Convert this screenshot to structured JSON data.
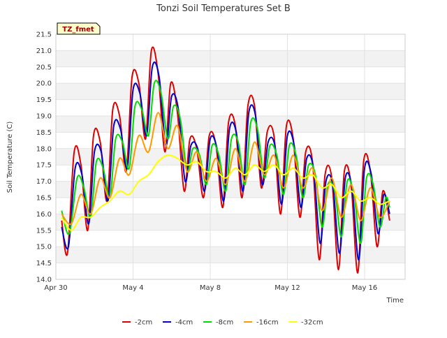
{
  "chart_data": {
    "type": "line",
    "title": "Tonzi Soil Temperatures Set B",
    "xlabel": "Time",
    "ylabel": "Soil Temperature (C)",
    "tag_label": "TZ_fmet",
    "ylim": [
      14.0,
      21.5
    ],
    "xlim": [
      0,
      18.1
    ],
    "x_unit": "days since Apr 30",
    "x_ticks": [
      {
        "label": "Apr 30",
        "value": 0
      },
      {
        "label": "May 4",
        "value": 4
      },
      {
        "label": "May 8",
        "value": 8
      },
      {
        "label": "May 12",
        "value": 12
      },
      {
        "label": "May 16",
        "value": 16
      }
    ],
    "y_ticks": [
      {
        "label": "14.0",
        "value": 14.0
      },
      {
        "label": "14.5",
        "value": 14.5
      },
      {
        "label": "15.0",
        "value": 15.0
      },
      {
        "label": "15.5",
        "value": 15.5
      },
      {
        "label": "16.0",
        "value": 16.0
      },
      {
        "label": "16.5",
        "value": 16.5
      },
      {
        "label": "17.0",
        "value": 17.0
      },
      {
        "label": "17.5",
        "value": 17.5
      },
      {
        "label": "18.0",
        "value": 18.0
      },
      {
        "label": "18.5",
        "value": 18.5
      },
      {
        "label": "19.0",
        "value": 19.0
      },
      {
        "label": "19.5",
        "value": 19.5
      },
      {
        "label": "20.0",
        "value": 20.0
      },
      {
        "label": "20.5",
        "value": 20.5
      },
      {
        "label": "21.0",
        "value": 21.0
      },
      {
        "label": "21.5",
        "value": 21.5
      }
    ],
    "grid": true,
    "legend_position": "bottom",
    "series": [
      {
        "name": "-2cm",
        "color": "#dd0000",
        "x": [
          0.3,
          0.6,
          0.95,
          1.3,
          1.65,
          1.95,
          2.3,
          2.65,
          2.95,
          3.3,
          3.65,
          3.95,
          4.3,
          4.65,
          4.95,
          5.3,
          5.65,
          5.95,
          6.3,
          6.65,
          6.95,
          7.3,
          7.65,
          7.95,
          8.3,
          8.65,
          8.95,
          9.3,
          9.65,
          9.95,
          10.3,
          10.65,
          10.95,
          11.3,
          11.65,
          11.95,
          12.3,
          12.65,
          12.95,
          13.3,
          13.65,
          13.95,
          14.3,
          14.65,
          14.95,
          15.3,
          15.65,
          15.95,
          16.3,
          16.65,
          16.95,
          17.3
        ],
        "y": [
          15.8,
          14.8,
          17.9,
          17.5,
          15.5,
          18.4,
          18.2,
          16.4,
          19.2,
          19.0,
          17.3,
          20.2,
          20.0,
          18.3,
          21.0,
          20.3,
          17.9,
          20.0,
          19.1,
          16.7,
          18.3,
          18.0,
          16.5,
          18.4,
          18.1,
          16.2,
          18.8,
          18.7,
          16.5,
          19.3,
          19.3,
          16.8,
          18.5,
          18.4,
          16.0,
          18.7,
          18.3,
          15.9,
          17.9,
          17.6,
          14.6,
          17.2,
          17.1,
          14.3,
          17.3,
          16.9,
          14.2,
          17.6,
          17.3,
          15.0,
          16.7,
          15.8
        ]
      },
      {
        "name": "-4cm",
        "color": "#0000cc",
        "x": [
          0.3,
          0.65,
          1.0,
          1.35,
          1.7,
          2.0,
          2.35,
          2.7,
          3.0,
          3.35,
          3.7,
          4.0,
          4.35,
          4.7,
          5.0,
          5.35,
          5.7,
          6.0,
          6.35,
          6.7,
          7.0,
          7.35,
          7.7,
          8.0,
          8.35,
          8.7,
          9.0,
          9.35,
          9.7,
          10.0,
          10.35,
          10.7,
          11.0,
          11.35,
          11.7,
          12.0,
          12.35,
          12.7,
          13.0,
          13.35,
          13.7,
          14.0,
          14.35,
          14.7,
          15.0,
          15.35,
          15.7,
          16.0,
          16.35,
          16.7,
          17.0,
          17.3
        ],
        "y": [
          15.6,
          15.0,
          17.4,
          17.2,
          15.7,
          17.9,
          17.9,
          16.4,
          18.7,
          18.6,
          17.4,
          19.8,
          19.7,
          18.4,
          20.5,
          20.2,
          18.1,
          19.6,
          19.2,
          17.0,
          18.1,
          18.0,
          16.7,
          18.3,
          18.0,
          16.4,
          18.6,
          18.5,
          16.7,
          19.1,
          19.0,
          16.9,
          18.2,
          18.1,
          16.3,
          18.4,
          18.1,
          16.2,
          17.7,
          17.4,
          15.1,
          17.0,
          16.9,
          14.8,
          17.1,
          16.8,
          14.6,
          17.4,
          17.2,
          15.4,
          16.6,
          16.0
        ]
      },
      {
        "name": "-8cm",
        "color": "#00dd00",
        "x": [
          0.3,
          0.7,
          1.1,
          1.45,
          1.8,
          2.1,
          2.45,
          2.8,
          3.1,
          3.45,
          3.8,
          4.1,
          4.45,
          4.8,
          5.1,
          5.45,
          5.8,
          6.1,
          6.45,
          6.8,
          7.1,
          7.45,
          7.8,
          8.1,
          8.45,
          8.8,
          9.1,
          9.45,
          9.8,
          10.1,
          10.45,
          10.8,
          11.1,
          11.45,
          11.8,
          12.1,
          12.45,
          12.8,
          13.1,
          13.45,
          13.8,
          14.1,
          14.45,
          14.8,
          15.1,
          15.45,
          15.8,
          16.1,
          16.45,
          16.8,
          17.1,
          17.3
        ],
        "y": [
          16.1,
          15.4,
          17.1,
          16.8,
          15.9,
          17.6,
          17.4,
          16.5,
          18.3,
          18.2,
          17.4,
          19.3,
          19.2,
          18.4,
          20.0,
          19.7,
          18.3,
          19.3,
          18.9,
          17.3,
          18.0,
          17.8,
          16.9,
          18.1,
          17.8,
          16.7,
          18.3,
          18.2,
          16.9,
          18.8,
          18.6,
          17.1,
          18.1,
          17.8,
          16.6,
          18.1,
          17.8,
          16.5,
          17.5,
          17.2,
          15.6,
          16.9,
          16.7,
          15.3,
          17.0,
          16.6,
          15.1,
          17.1,
          16.9,
          15.6,
          16.5,
          16.2
        ]
      },
      {
        "name": "-16cm",
        "color": "#ff9900",
        "x": [
          0.3,
          0.8,
          1.3,
          1.8,
          2.3,
          2.8,
          3.3,
          3.8,
          4.3,
          4.8,
          5.3,
          5.8,
          6.3,
          6.8,
          7.3,
          7.8,
          8.3,
          8.8,
          9.3,
          9.8,
          10.3,
          10.8,
          11.3,
          11.8,
          12.3,
          12.8,
          13.3,
          13.8,
          14.3,
          14.8,
          15.3,
          15.8,
          16.3,
          16.8,
          17.3
        ],
        "y": [
          16.0,
          15.7,
          16.6,
          16.0,
          17.1,
          16.5,
          17.7,
          17.2,
          18.4,
          17.9,
          19.1,
          18.0,
          18.7,
          17.3,
          17.9,
          17.0,
          17.7,
          16.9,
          18.0,
          17.0,
          18.2,
          17.2,
          17.8,
          16.8,
          17.8,
          16.8,
          17.4,
          16.1,
          17.1,
          15.9,
          16.9,
          15.8,
          16.8,
          15.9,
          16.4
        ]
      },
      {
        "name": "-32cm",
        "color": "#ffff00",
        "x": [
          0.3,
          0.8,
          1.3,
          1.8,
          2.3,
          2.8,
          3.3,
          3.8,
          4.3,
          4.8,
          5.3,
          5.8,
          6.3,
          6.8,
          7.3,
          7.8,
          8.3,
          8.8,
          9.3,
          9.8,
          10.3,
          10.8,
          11.3,
          11.8,
          12.3,
          12.8,
          13.3,
          13.8,
          14.3,
          14.8,
          15.3,
          15.8,
          16.3,
          16.8,
          17.3
        ],
        "y": [
          15.9,
          15.5,
          15.9,
          15.9,
          16.2,
          16.4,
          16.7,
          16.6,
          17.0,
          17.2,
          17.6,
          17.8,
          17.7,
          17.5,
          17.6,
          17.3,
          17.3,
          17.1,
          17.4,
          17.2,
          17.5,
          17.3,
          17.5,
          17.2,
          17.4,
          17.1,
          17.2,
          16.8,
          16.9,
          16.5,
          16.7,
          16.4,
          16.5,
          16.3,
          16.4
        ]
      }
    ]
  }
}
